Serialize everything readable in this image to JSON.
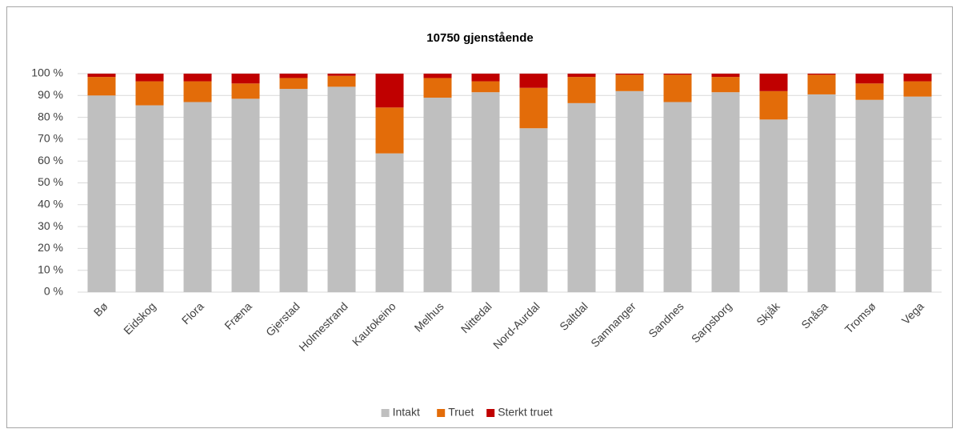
{
  "chart_data": {
    "type": "stacked_bar",
    "title": "10750 gjenstående",
    "categories": [
      "Bø",
      "Eidskog",
      "Flora",
      "Fræna",
      "Gjerstad",
      "Holmestrand",
      "Kautokeino",
      "Melhus",
      "Nittedal",
      "Nord-Aurdal",
      "Saltdal",
      "Samnanger",
      "Sandnes",
      "Sarpsborg",
      "Skjåk",
      "Snåsa",
      "Tromsø",
      "Vega"
    ],
    "series": [
      {
        "name": "Intakt",
        "color": "#bfbfbf",
        "values": [
          90,
          85.5,
          87,
          88.5,
          93,
          94,
          63.5,
          89,
          91.5,
          75,
          86.5,
          92,
          87,
          91.5,
          79,
          90.5,
          88,
          89.5
        ]
      },
      {
        "name": "Truet",
        "color": "#e36c09",
        "values": [
          8.5,
          11,
          9.5,
          7,
          5,
          5,
          21,
          9,
          5,
          18.5,
          12,
          7.5,
          12.5,
          7,
          13,
          9,
          7.5,
          7
        ]
      },
      {
        "name": "Sterkt truet",
        "color": "#c00000",
        "values": [
          1.5,
          3.5,
          3.5,
          4.5,
          2,
          1,
          15.5,
          2,
          3.5,
          6.5,
          1.5,
          0.5,
          0.5,
          1.5,
          8,
          0.5,
          4.5,
          3.5
        ]
      }
    ],
    "ylim": [
      0,
      100
    ],
    "yticks": [
      {
        "value": 0,
        "label": "0 %"
      },
      {
        "value": 10,
        "label": "10 %"
      },
      {
        "value": 20,
        "label": "20 %"
      },
      {
        "value": 30,
        "label": "30 %"
      },
      {
        "value": 40,
        "label": "40 %"
      },
      {
        "value": 50,
        "label": "50 %"
      },
      {
        "value": 60,
        "label": "60 %"
      },
      {
        "value": 70,
        "label": "70 %"
      },
      {
        "value": 80,
        "label": "80 %"
      },
      {
        "value": 90,
        "label": "90 %"
      },
      {
        "value": 100,
        "label": "100 %"
      }
    ],
    "grid": true,
    "legend": "bottom"
  }
}
